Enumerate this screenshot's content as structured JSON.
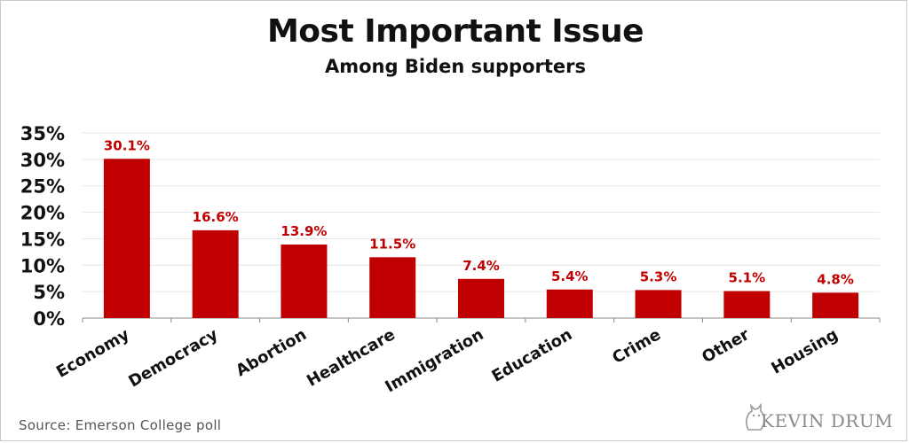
{
  "chart_data": {
    "type": "bar",
    "title": "Most Important Issue",
    "subtitle": "Among Biden supporters",
    "categories": [
      "Economy",
      "Democracy",
      "Abortion",
      "Healthcare",
      "Immigration",
      "Education",
      "Crime",
      "Other",
      "Housing"
    ],
    "values": [
      30.1,
      16.6,
      13.9,
      11.5,
      7.4,
      5.4,
      5.3,
      5.1,
      4.8
    ],
    "value_labels": [
      "30.1%",
      "16.6%",
      "13.9%",
      "11.5%",
      "7.4%",
      "5.4%",
      "5.3%",
      "5.1%",
      "4.8%"
    ],
    "yticks": [
      0,
      5,
      10,
      15,
      20,
      25,
      30,
      35
    ],
    "ytick_labels": [
      "0%",
      "5%",
      "10%",
      "15%",
      "20%",
      "25%",
      "30%",
      "35%"
    ],
    "ylim": [
      0,
      35
    ],
    "xlabel": "",
    "ylabel": "",
    "grid": true,
    "bar_color": "#c00000",
    "label_color": "#c00000"
  },
  "source": "Source: Emerson College poll",
  "logo_text": "KEVIN DRUM"
}
